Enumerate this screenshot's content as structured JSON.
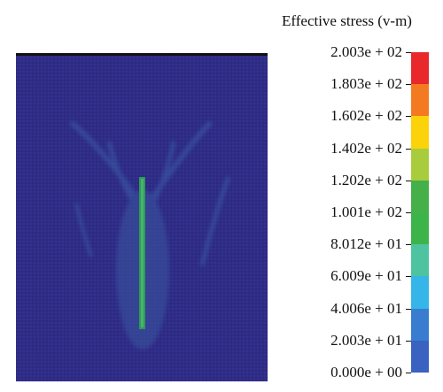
{
  "legend": {
    "title": "Effective stress (v-m)",
    "ticks": [
      "2.003e + 02",
      "1.803e + 02",
      "1.602e + 02",
      "1.402e + 02",
      "1.202e + 02",
      "1.001e + 02",
      "8.012e + 01",
      "6.009e + 01",
      "4.006e + 01",
      "2.003e + 01",
      "0.000e + 00"
    ],
    "colors": [
      "#e8282a",
      "#f47a22",
      "#fcd20a",
      "#a8cc3c",
      "#45b04a",
      "#3db44a",
      "#4ec3a0",
      "#35b5e8",
      "#3a7cd0",
      "#3a62c0"
    ]
  },
  "plot": {
    "background": "#2e2c86",
    "frame_top_color": "#111111",
    "crack_color": "#2f9a5a",
    "halo_color": "#3d5fa8"
  }
}
